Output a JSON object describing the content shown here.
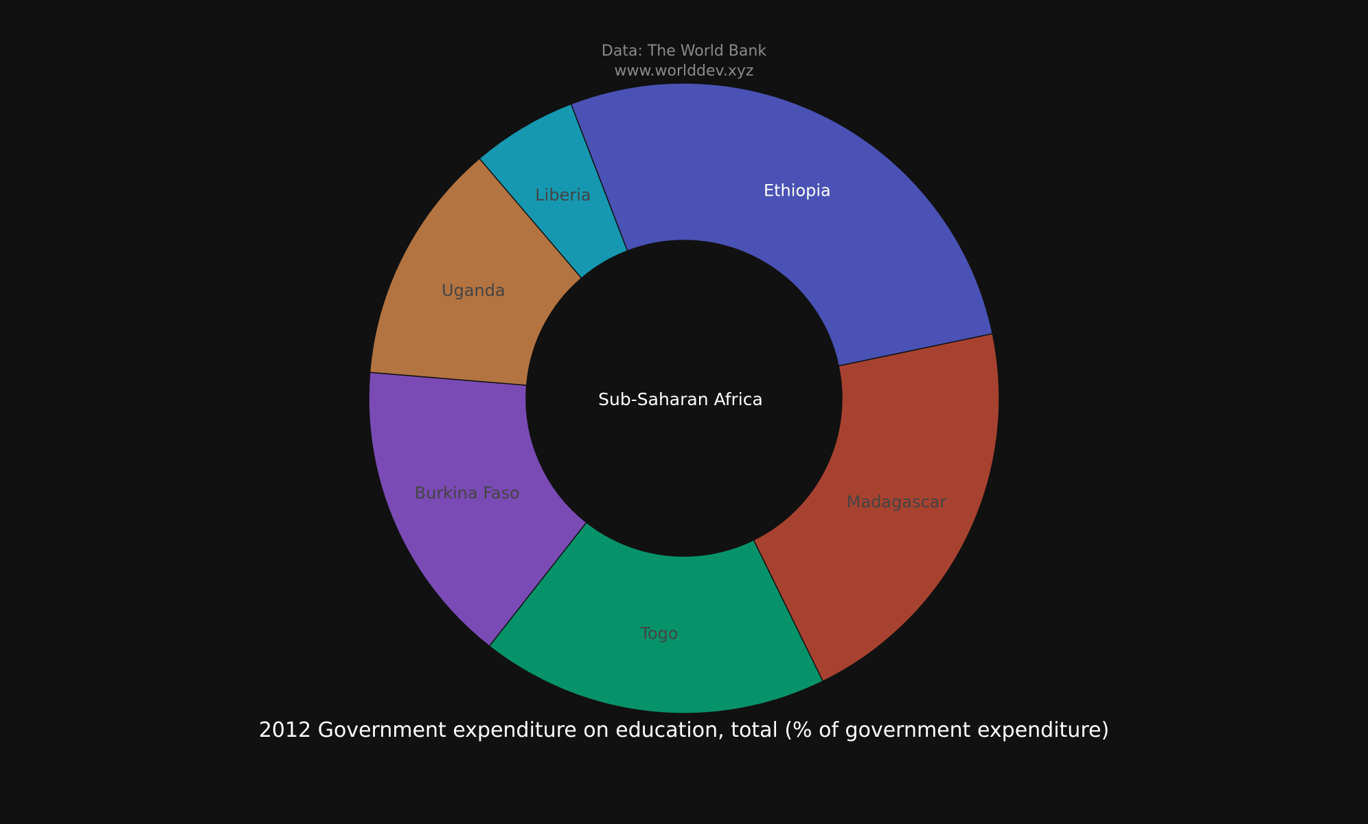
{
  "source": {
    "line1": "Data: The World Bank",
    "line2": "www.worlddev.xyz"
  },
  "chart_data": {
    "type": "pie",
    "hole": true,
    "title": "2012 Government expenditure on education, total (% of government expenditure)",
    "center_label": "Sub-Saharan Africa",
    "categories": [
      "Ethiopia",
      "Madagascar",
      "Togo",
      "Burkina Faso",
      "Uganda",
      "Liberia"
    ],
    "values": [
      27.0,
      20.6,
      17.5,
      15.4,
      12.2,
      5.3
    ],
    "colors": [
      "#4a52b5",
      "#a84230",
      "#079369",
      "#7a4bb4",
      "#b37442",
      "#1698b1"
    ],
    "label_colors": [
      "#ffffff",
      "#444444",
      "#444444",
      "#444444",
      "#444444",
      "#444444"
    ],
    "legend": "none"
  }
}
